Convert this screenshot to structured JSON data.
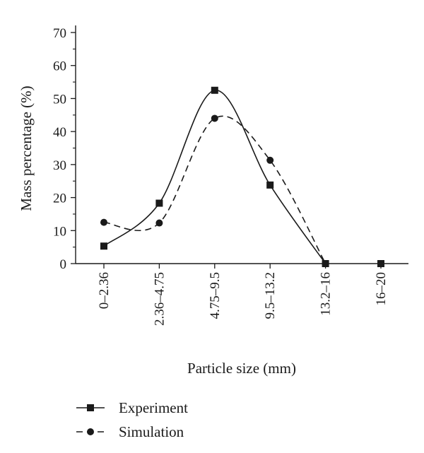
{
  "chart_data": {
    "type": "line",
    "categories": [
      "0–2.36",
      "2.36–4.75",
      "4.75–9.5",
      "9.5–13.2",
      "13.2–16",
      "16–20"
    ],
    "series": [
      {
        "name": "Experiment",
        "values": [
          5.3,
          18.3,
          52.5,
          23.8,
          0,
          0
        ],
        "marker": "square",
        "line": "solid",
        "color": "#1a1a1a"
      },
      {
        "name": "Simulation",
        "values": [
          12.5,
          12.3,
          44.0,
          31.3,
          0,
          null
        ],
        "marker": "circle",
        "line": "dashed",
        "color": "#1a1a1a"
      }
    ],
    "xlabel": "Particle size (mm)",
    "ylabel": "Mass percentage (%)",
    "ylim": [
      0,
      70
    ],
    "yticks": [
      0,
      10,
      20,
      30,
      40,
      50,
      60,
      70
    ],
    "grid": false,
    "legend_position": "bottom"
  }
}
